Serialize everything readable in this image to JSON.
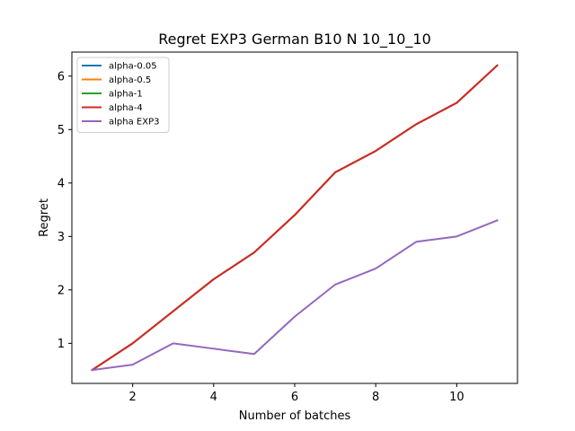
{
  "chart_data": {
    "type": "line",
    "title": "Regret EXP3 German B10 N 10_10_10",
    "xlabel": "Number of batches",
    "ylabel": "Regret",
    "xlim": [
      0.5,
      11.5
    ],
    "ylim": [
      0.25,
      6.45
    ],
    "xticks": [
      2,
      4,
      6,
      8,
      10
    ],
    "yticks": [
      1,
      2,
      3,
      4,
      5,
      6
    ],
    "x": [
      1,
      2,
      3,
      4,
      5,
      6,
      7,
      8,
      9,
      10,
      11
    ],
    "legend_position": "upper-left",
    "grid": false,
    "series": [
      {
        "name": "alpha-0.05",
        "color": "#1f77b4",
        "values": [
          0.5,
          1.0,
          1.6,
          2.2,
          2.7,
          3.4,
          4.2,
          4.6,
          5.1,
          5.5,
          6.2
        ]
      },
      {
        "name": "alpha-0.5",
        "color": "#ff7f0e",
        "values": [
          0.5,
          1.0,
          1.6,
          2.2,
          2.7,
          3.4,
          4.2,
          4.6,
          5.1,
          5.5,
          6.2
        ]
      },
      {
        "name": "alpha-1",
        "color": "#2ca02c",
        "values": [
          0.5,
          1.0,
          1.6,
          2.2,
          2.7,
          3.4,
          4.2,
          4.6,
          5.1,
          5.5,
          6.2
        ]
      },
      {
        "name": "alpha-4",
        "color": "#d62728",
        "values": [
          0.5,
          1.0,
          1.6,
          2.2,
          2.7,
          3.4,
          4.2,
          4.6,
          5.1,
          5.5,
          6.2
        ]
      },
      {
        "name": "alpha EXP3",
        "color": "#9467bd",
        "values": [
          0.5,
          0.6,
          1.0,
          0.9,
          0.8,
          1.5,
          2.1,
          2.4,
          2.9,
          3.0,
          3.3
        ]
      }
    ]
  }
}
